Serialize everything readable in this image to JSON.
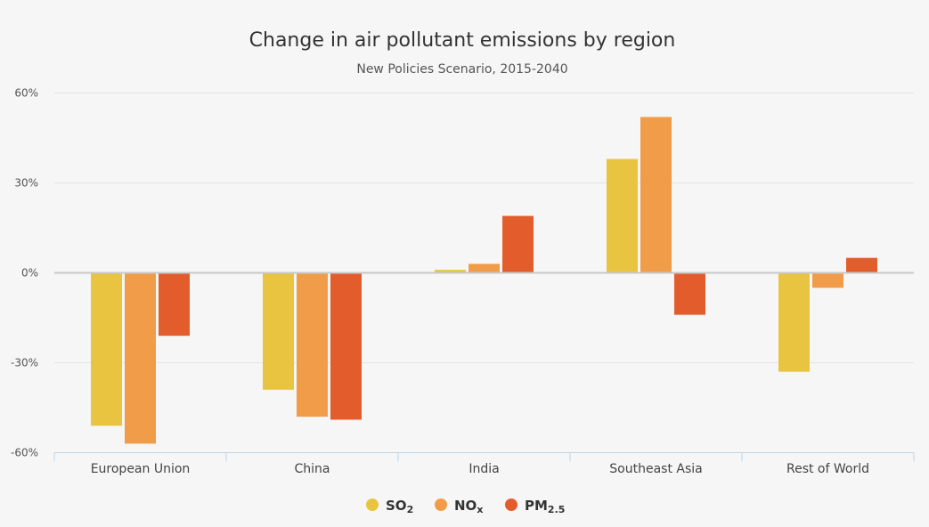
{
  "chart_data": {
    "type": "bar",
    "title": "Change in air pollutant emissions by region",
    "subtitle": "New Policies Scenario, 2015-2040",
    "categories": [
      "European Union",
      "China",
      "India",
      "Southeast Asia",
      "Rest of World"
    ],
    "series": [
      {
        "name": "SO2",
        "name_base": "SO",
        "name_sub": "2",
        "color": "#e8c440",
        "values": [
          -51,
          -39,
          1,
          38,
          -33
        ]
      },
      {
        "name": "NOx",
        "name_base": "NO",
        "name_sub": "x",
        "color": "#f09c48",
        "values": [
          -57,
          -48,
          3,
          52,
          -5
        ]
      },
      {
        "name": "PM2.5",
        "name_base": "PM",
        "name_sub": "2.5",
        "color": "#e35d2c",
        "values": [
          -21,
          -49,
          19,
          -14,
          5
        ]
      }
    ],
    "ylim": [
      -60,
      60
    ],
    "yticks": [
      60,
      30,
      0,
      -30,
      -60
    ],
    "ytick_labels": [
      "60%",
      "30%",
      "0%",
      "-30%",
      "-60%"
    ],
    "xlabel": "",
    "ylabel": "",
    "grid": true,
    "legend_position": "bottom-center"
  }
}
